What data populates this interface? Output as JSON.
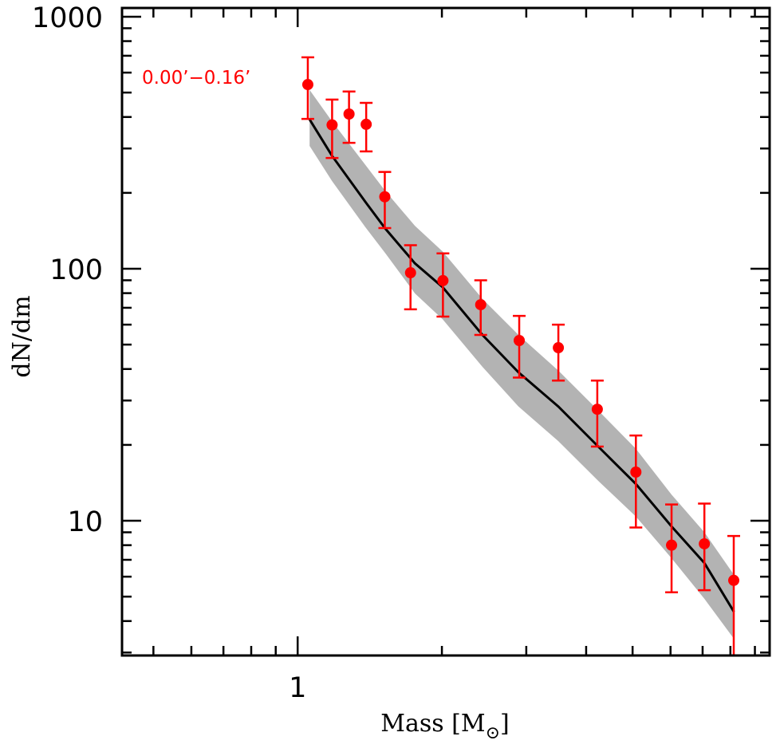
{
  "chart_data": {
    "type": "scatter",
    "title": "",
    "xlabel": "Mass [M",
    "xlabel_sub": "⊙",
    "xlabel_end": "]",
    "ylabel": "dN/dm",
    "xscale": "log",
    "yscale": "log",
    "xlim": [
      0.43,
      9.66
    ],
    "ylim": [
      2.92,
      1083
    ],
    "x_ticks": [
      {
        "value": 1,
        "label": "1"
      }
    ],
    "x_minor_ticks": [
      0.5,
      0.6,
      0.7,
      0.8,
      0.9,
      2,
      3,
      4,
      5,
      6,
      7,
      8,
      9
    ],
    "y_ticks": [
      {
        "value": 10,
        "label": "10"
      },
      {
        "value": 100,
        "label": "100"
      },
      {
        "value": 1000,
        "label": "1000"
      }
    ],
    "y_minor_ticks": [
      3,
      4,
      5,
      6,
      7,
      8,
      9,
      20,
      30,
      40,
      50,
      60,
      70,
      80,
      90,
      200,
      300,
      400,
      500,
      600,
      700,
      800,
      900
    ],
    "grid": false,
    "annotation": {
      "text": "0.00’−0.16’",
      "color": "#ff0000",
      "position": "top-left"
    },
    "series": [
      {
        "name": "observed",
        "kind": "points-with-errorbars",
        "color": "#ff0000",
        "x": [
          1.05,
          1.18,
          1.28,
          1.39,
          1.52,
          1.72,
          2.01,
          2.41,
          2.9,
          3.5,
          4.22,
          5.08,
          6.03,
          7.06,
          8.13
        ],
        "y": [
          538,
          372,
          411,
          374,
          193,
          96.4,
          89.7,
          72.0,
          51.9,
          48.6,
          27.7,
          15.6,
          8.0,
          8.1,
          5.8
        ],
        "y_upper": [
          690,
          469,
          505,
          455,
          242,
          124,
          115,
          90,
          65,
          60,
          36,
          21.8,
          11.6,
          11.7,
          8.7
        ],
        "y_lower": [
          393,
          275,
          316,
          292,
          145,
          69,
          64.6,
          54.6,
          37,
          36,
          19.7,
          9.4,
          5.2,
          5.3,
          2.5
        ]
      },
      {
        "name": "model",
        "kind": "line",
        "color": "#000000",
        "x": [
          1.059,
          1.179,
          1.385,
          1.525,
          1.757,
          2.007,
          2.43,
          2.89,
          3.5,
          4.24,
          5.08,
          6.03,
          7.06,
          8.14
        ],
        "y": [
          391,
          281,
          184,
          144,
          105,
          84.5,
          54.6,
          38.8,
          28.4,
          19.7,
          14.0,
          9.5,
          6.8,
          4.35
        ]
      },
      {
        "name": "model-uncertainty-band",
        "kind": "band",
        "color": "#b3b3b3",
        "x": [
          1.059,
          1.179,
          1.385,
          1.525,
          1.757,
          2.007,
          2.43,
          2.89,
          3.5,
          4.24,
          5.08,
          6.03,
          7.06,
          8.14
        ],
        "upper": [
          512,
          385,
          258,
          203,
          148,
          117,
          75.9,
          54.6,
          39.4,
          27.4,
          19.3,
          12.7,
          9.0,
          6.1
        ],
        "lower": [
          307,
          223,
          146,
          115,
          79.8,
          63,
          40.8,
          28.4,
          20.7,
          14.4,
          10.4,
          7.1,
          4.9,
          3.4
        ]
      }
    ]
  }
}
